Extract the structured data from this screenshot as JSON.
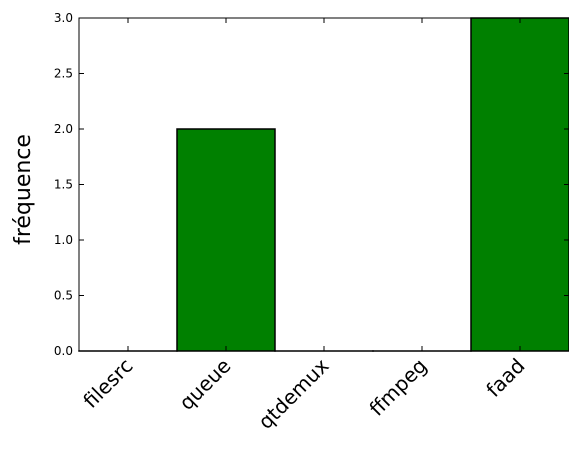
{
  "chart_data": {
    "type": "bar",
    "categories": [
      "filesrc",
      "queue",
      "qtdemux",
      "ffmpeg",
      "faad"
    ],
    "values": [
      0,
      2,
      0,
      0,
      3
    ],
    "ylabel": "fréquence",
    "xlabel": "",
    "ylim": [
      0,
      3
    ],
    "yticks": [
      "0.0",
      "0.5",
      "1.0",
      "1.5",
      "2.0",
      "2.5",
      "3.0"
    ],
    "bar_color": "#008000",
    "bar_edge_color": "#000000",
    "grid": false
  }
}
